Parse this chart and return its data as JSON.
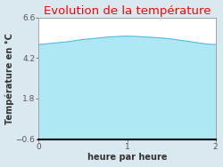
{
  "title": "Evolution de la température",
  "xlabel": "heure par heure",
  "ylabel": "Température en °C",
  "xlim": [
    0,
    2
  ],
  "ylim": [
    -0.6,
    6.6
  ],
  "yticks": [
    -0.6,
    1.8,
    4.2,
    6.6
  ],
  "xticks": [
    0,
    1,
    2
  ],
  "line_color": "#55bbdd",
  "fill_color": "#aee8f5",
  "bg_color": "#dae8f0",
  "plot_bg_color": "#ffffff",
  "title_color": "#ff0000",
  "title_fontsize": 9.5,
  "axis_label_fontsize": 7,
  "tick_fontsize": 6.5,
  "x_data": [
    0.0,
    0.05,
    0.1,
    0.2,
    0.3,
    0.4,
    0.5,
    0.6,
    0.7,
    0.8,
    0.9,
    1.0,
    1.1,
    1.2,
    1.3,
    1.4,
    1.5,
    1.6,
    1.7,
    1.8,
    1.9,
    1.95,
    2.0
  ],
  "y_data": [
    5.0,
    5.02,
    5.05,
    5.1,
    5.15,
    5.22,
    5.3,
    5.35,
    5.4,
    5.45,
    5.48,
    5.5,
    5.48,
    5.45,
    5.42,
    5.38,
    5.33,
    5.25,
    5.18,
    5.1,
    5.03,
    5.01,
    5.0
  ]
}
